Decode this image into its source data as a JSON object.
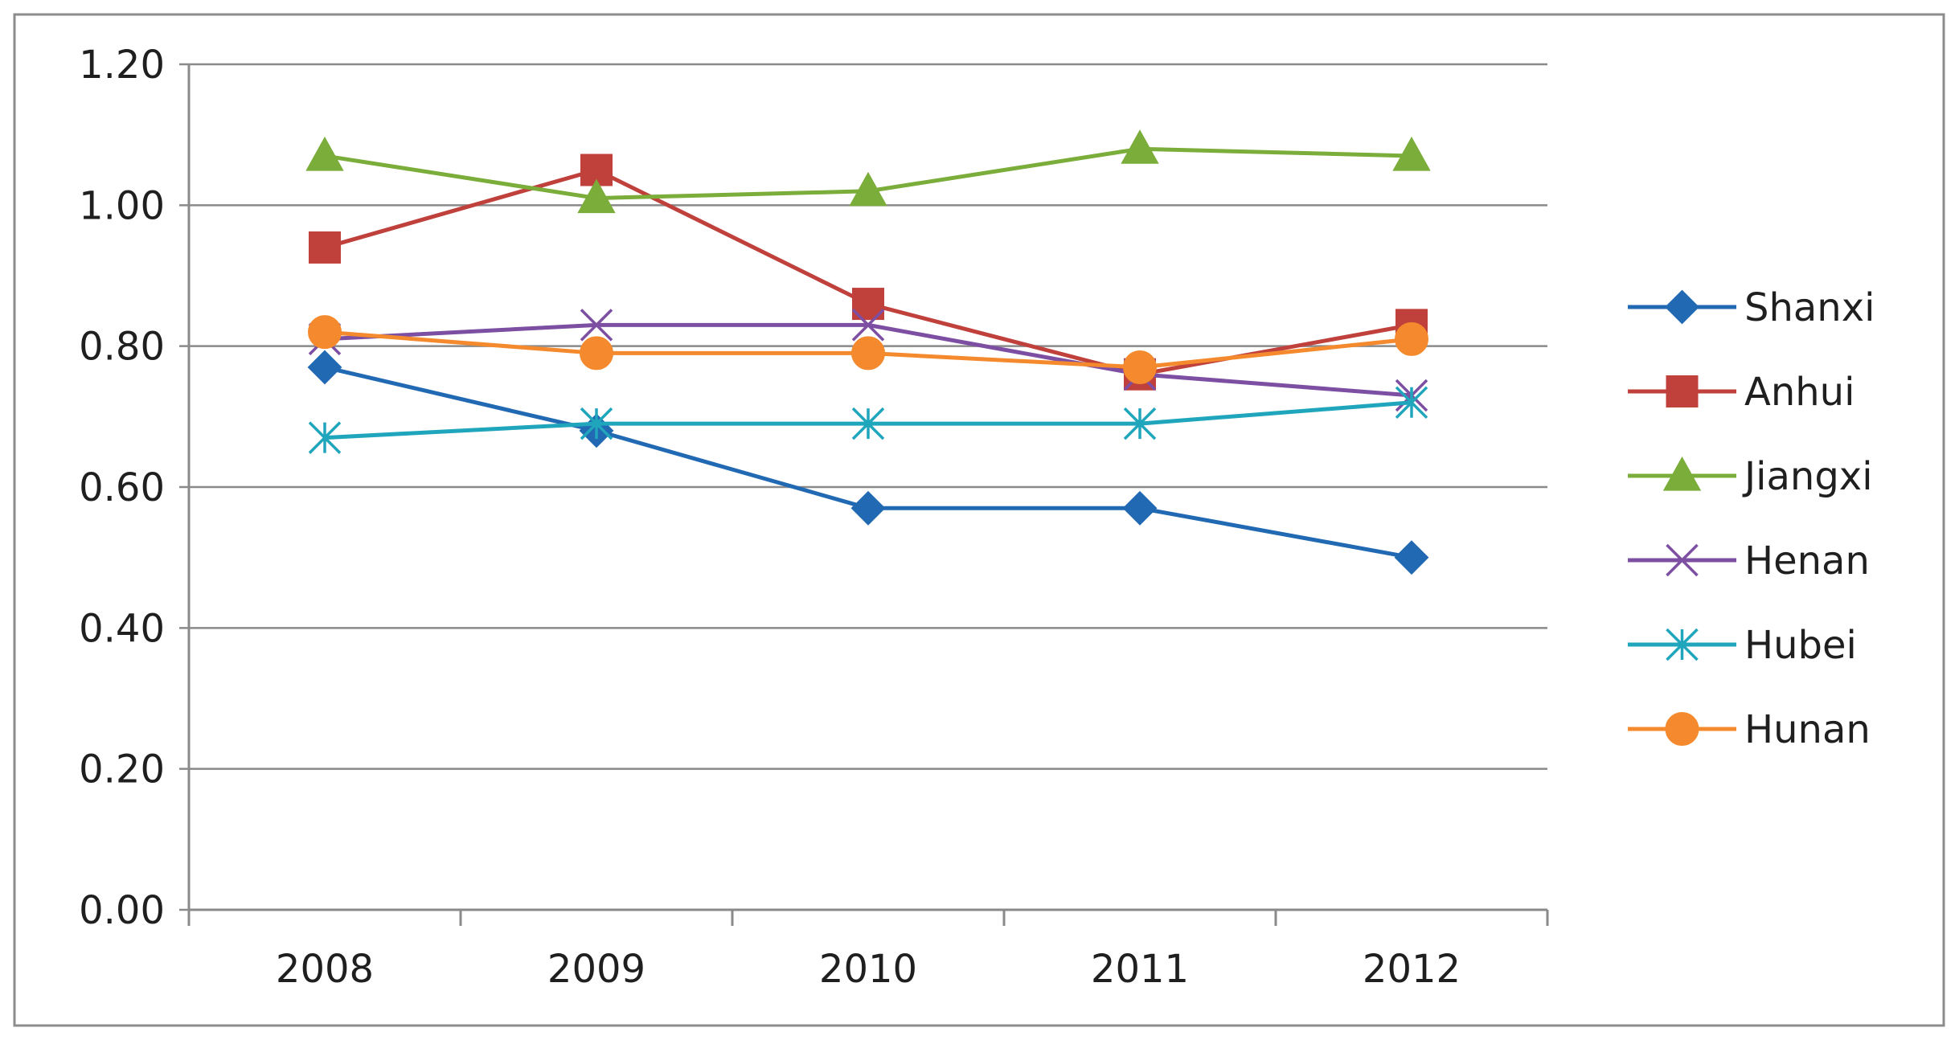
{
  "chart_data": {
    "type": "line",
    "title": "",
    "xlabel": "",
    "ylabel": "",
    "categories": [
      "2008",
      "2009",
      "2010",
      "2011",
      "2012"
    ],
    "y_ticks": [
      "0.00",
      "0.20",
      "0.40",
      "0.60",
      "0.80",
      "1.00",
      "1.20"
    ],
    "ylim": [
      0,
      1.2
    ],
    "grid": "horizontal",
    "legend_position": "right",
    "series": [
      {
        "name": "Shanxi",
        "color": "#2169B3",
        "marker": "diamond",
        "values": [
          0.77,
          0.68,
          0.57,
          0.57,
          0.5
        ]
      },
      {
        "name": "Anhui",
        "color": "#C0403B",
        "marker": "square",
        "values": [
          0.94,
          1.05,
          0.86,
          0.76,
          0.83
        ]
      },
      {
        "name": "Jiangxi",
        "color": "#7BAD3A",
        "marker": "triangle",
        "values": [
          1.07,
          1.01,
          1.02,
          1.08,
          1.07
        ]
      },
      {
        "name": "Henan",
        "color": "#7D4FA3",
        "marker": "x",
        "values": [
          0.81,
          0.83,
          0.83,
          0.76,
          0.73
        ]
      },
      {
        "name": "Hubei",
        "color": "#20A6BC",
        "marker": "asterisk",
        "values": [
          0.67,
          0.69,
          0.69,
          0.69,
          0.72
        ]
      },
      {
        "name": "Hunan",
        "color": "#F48A2D",
        "marker": "circle",
        "values": [
          0.82,
          0.79,
          0.79,
          0.77,
          0.81
        ]
      }
    ]
  }
}
